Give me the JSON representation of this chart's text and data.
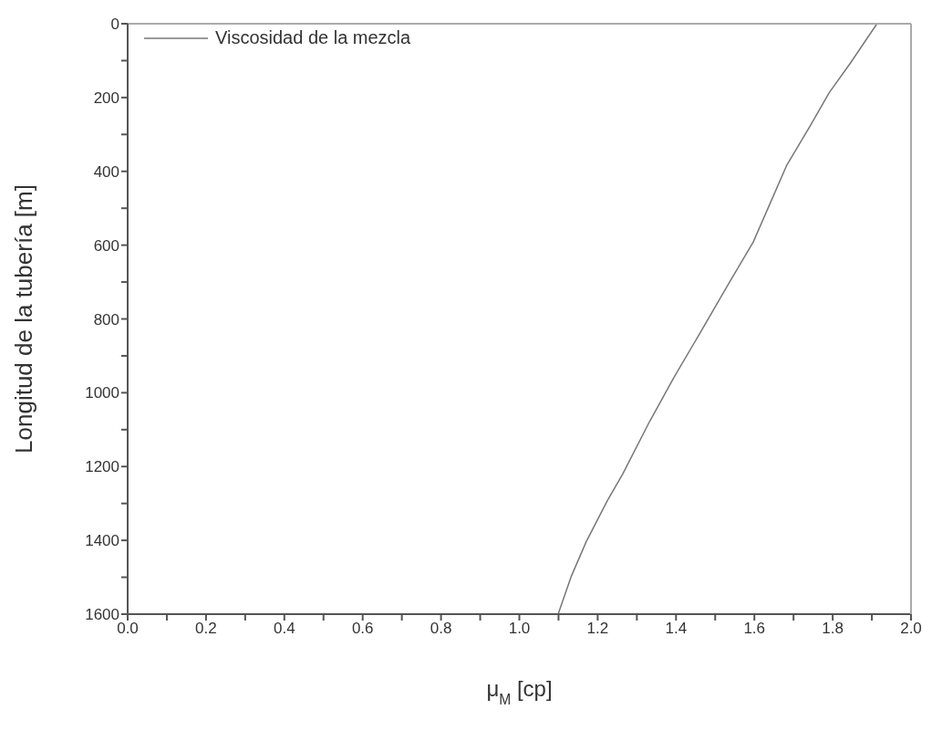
{
  "chart_data": {
    "type": "line",
    "xlabel": "μ$_{M}$ [cp]",
    "ylabel": "Longitud de la tubería [m]",
    "xlim": [
      0,
      2
    ],
    "ylim": [
      1600,
      0
    ],
    "xticks": [
      {
        "value": 0,
        "label": "0.0"
      },
      {
        "value": 0.1,
        "label": null
      },
      {
        "value": 0.2,
        "label": "0.2"
      },
      {
        "value": 0.3,
        "label": null
      },
      {
        "value": 0.4,
        "label": "0.4"
      },
      {
        "value": 0.5,
        "label": null
      },
      {
        "value": 0.6,
        "label": "0.6"
      },
      {
        "value": 0.7,
        "label": null
      },
      {
        "value": 0.8,
        "label": "0.8"
      },
      {
        "value": 0.9,
        "label": null
      },
      {
        "value": 1,
        "label": "1.0"
      },
      {
        "value": 1.1,
        "label": null
      },
      {
        "value": 1.2,
        "label": "1.2"
      },
      {
        "value": 1.3,
        "label": null
      },
      {
        "value": 1.4,
        "label": "1.4"
      },
      {
        "value": 1.5,
        "label": null
      },
      {
        "value": 1.6,
        "label": "1.6"
      },
      {
        "value": 1.7,
        "label": null
      },
      {
        "value": 1.8,
        "label": "1.8"
      },
      {
        "value": 1.9,
        "label": null
      },
      {
        "value": 2,
        "label": "2.0"
      }
    ],
    "yticks": [
      0,
      {
        "value": 100,
        "label": null
      },
      200,
      {
        "value": 300,
        "label": null
      },
      400,
      {
        "value": 500,
        "label": null
      },
      600,
      {
        "value": 700,
        "label": null
      },
      800,
      {
        "value": 900,
        "label": null
      },
      1000,
      {
        "value": 1100,
        "label": null
      },
      1200,
      {
        "value": 1300,
        "label": null
      },
      1400,
      {
        "value": 1500,
        "label": null
      },
      1600
    ],
    "grid": false,
    "legend": "top left",
    "marker": "none",
    "line_style": "solid",
    "series": [
      {
        "name": "Viscosidad de la mezcla",
        "color": "#777777",
        "x": [
          1.913,
          1.845,
          1.791,
          1.744,
          1.682,
          1.643,
          1.597,
          1.535,
          1.457,
          1.395,
          1.333,
          1.264,
          1.225,
          1.171,
          1.132,
          1.099
        ],
        "values": [
          0,
          107,
          187,
          274,
          385,
          480,
          592,
          703,
          846,
          958,
          1077,
          1220,
          1292,
          1403,
          1499,
          1600
        ]
      }
    ]
  }
}
